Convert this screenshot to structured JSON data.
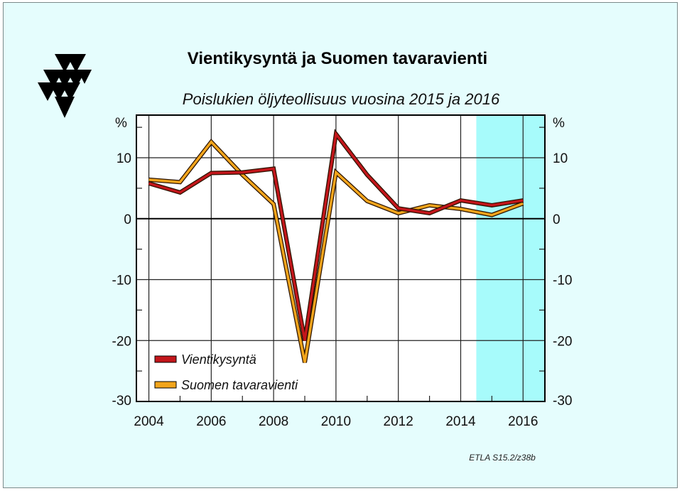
{
  "chart_data": {
    "type": "line",
    "title": "Vientikysyntä ja Suomen tavaravienti",
    "subtitle": "Poislukien öljyteollisuus vuosina 2015 ja 2016",
    "ylabel_left": "%",
    "ylabel_right": "%",
    "x": [
      2004,
      2005,
      2006,
      2007,
      2008,
      2009,
      2010,
      2011,
      2012,
      2013,
      2014,
      2015,
      2016
    ],
    "xticks": [
      "2004",
      "2006",
      "2008",
      "2010",
      "2012",
      "2014",
      "2016"
    ],
    "yticks": [
      "10",
      "0",
      "-10",
      "-20",
      "-30"
    ],
    "ylim": [
      -30,
      17
    ],
    "xlim": [
      2003.6,
      2016.7
    ],
    "forecast_shading": {
      "from": 2014.5,
      "to": 2016.7,
      "color": "#a7fbfb"
    },
    "grid": true,
    "legend_placement": "bottom-left",
    "series": [
      {
        "name": "Vientikysyntä",
        "color": "#c3161b",
        "values": [
          5.8,
          4.3,
          7.5,
          7.6,
          8.2,
          -20.0,
          13.9,
          7.2,
          1.7,
          0.9,
          3.0,
          2.2,
          3.0
        ]
      },
      {
        "name": "Suomen tavaravienti",
        "color": "#f2a51c",
        "values": [
          6.4,
          6.0,
          12.6,
          7.2,
          2.4,
          -23.6,
          7.6,
          2.9,
          0.9,
          2.2,
          1.6,
          0.6,
          2.5
        ]
      }
    ]
  },
  "source_label": "ETLA S15.2/z38b",
  "colors": {
    "background": "#e5fdfd",
    "plot": "#ffffff",
    "forecast": "#a7fbfb"
  }
}
